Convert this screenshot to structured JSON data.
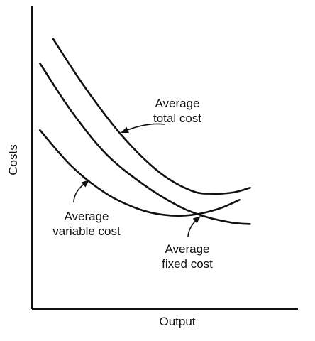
{
  "chart_data": {
    "type": "line",
    "title": "",
    "xlabel": "Output",
    "ylabel": "Costs",
    "xlim": [
      0,
      100
    ],
    "ylim": [
      0,
      100
    ],
    "grid": false,
    "series": [
      {
        "name": "Average total cost",
        "color": "#111111",
        "points": [
          [
            8,
            89
          ],
          [
            20,
            73
          ],
          [
            34,
            57
          ],
          [
            48,
            45
          ],
          [
            60,
            39
          ],
          [
            68,
            38
          ],
          [
            76,
            38.5
          ],
          [
            82,
            40
          ]
        ]
      },
      {
        "name": "Average variable cost",
        "color": "#111111",
        "points": [
          [
            3,
            59
          ],
          [
            15,
            47
          ],
          [
            28,
            38
          ],
          [
            40,
            33
          ],
          [
            50,
            31
          ],
          [
            60,
            31
          ],
          [
            70,
            33
          ],
          [
            78,
            36
          ]
        ]
      },
      {
        "name": "Average fixed cost",
        "color": "#111111",
        "points": [
          [
            3,
            81
          ],
          [
            15,
            65
          ],
          [
            28,
            51
          ],
          [
            42,
            41
          ],
          [
            55,
            34
          ],
          [
            65,
            30.5
          ],
          [
            75,
            28.5
          ],
          [
            82,
            28
          ]
        ]
      }
    ],
    "annotations": [
      {
        "lines": [
          "Average",
          "total cost"
        ],
        "series": "Average total cost"
      },
      {
        "lines": [
          "Average",
          "variable cost"
        ],
        "series": "Average variable cost"
      },
      {
        "lines": [
          "Average",
          "fixed cost"
        ],
        "series": "Average fixed cost"
      }
    ]
  }
}
